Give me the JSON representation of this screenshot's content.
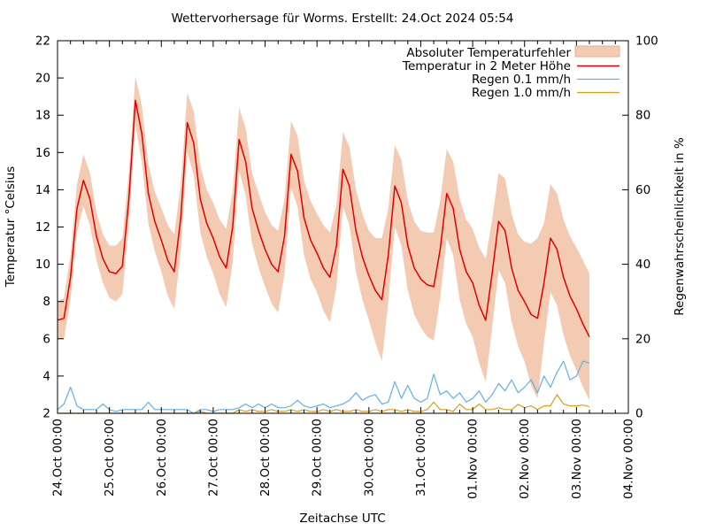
{
  "chart_data": {
    "type": "line",
    "title": "Wettervorhersage für Worms. Erstellt: 24.Oct 2024 05:54",
    "xlabel": "Zeitachse UTC",
    "ylabel_left": "Temperatur °Celsius",
    "ylabel_right": "Regenwahrscheinlichkeit in %",
    "ylim_left": [
      2,
      22
    ],
    "ylim_right": [
      0,
      100
    ],
    "ytick_step_left": 2,
    "ytick_step_right": 20,
    "x_hours_total": 264,
    "x_minor_step_hours": 6,
    "x_tick_labels": [
      "24.Oct 00:00",
      "25.Oct 00:00",
      "26.Oct 00:00",
      "27.Oct 00:00",
      "28.Oct 00:00",
      "29.Oct 00:00",
      "30.Oct 00:00",
      "31.Oct 00:00",
      "01.Nov 00:00",
      "02.Nov 00:00",
      "03.Nov 00:00",
      "04.Nov 00:00"
    ],
    "grid": false,
    "legend_position": "top-right-inside",
    "legend": [
      {
        "label": "Absoluter Temperaturfehler",
        "type": "band",
        "color": "#f3cab2"
      },
      {
        "label": "Temperatur in 2 Meter Höhe",
        "type": "line",
        "color": "#e10000"
      },
      {
        "label": "Regen 0.1 mm/h",
        "type": "line",
        "color": "#5fb2e6"
      },
      {
        "label": "Regen 1.0 mm/h",
        "type": "line",
        "color": "#dba117"
      }
    ],
    "series": {
      "start": "24.Oct 00:00 UTC",
      "hours_step": 3,
      "temperature_c": [
        7.0,
        7.1,
        9.3,
        13.0,
        14.5,
        13.5,
        11.5,
        10.3,
        9.6,
        9.5,
        9.9,
        13.5,
        18.8,
        17.0,
        13.8,
        12.3,
        11.3,
        10.2,
        9.6,
        12.5,
        17.6,
        16.5,
        13.5,
        12.2,
        11.4,
        10.4,
        9.8,
        12.0,
        16.7,
        15.5,
        13.0,
        11.8,
        10.8,
        10.0,
        9.6,
        11.5,
        15.9,
        15.0,
        12.5,
        11.3,
        10.6,
        9.8,
        9.3,
        11.0,
        15.1,
        14.2,
        11.8,
        10.4,
        9.4,
        8.6,
        8.1,
        10.5,
        14.2,
        13.3,
        11.0,
        9.8,
        9.2,
        8.9,
        8.8,
        10.8,
        13.8,
        13.0,
        10.8,
        9.6,
        9.0,
        7.8,
        7.0,
        9.5,
        12.3,
        11.8,
        9.8,
        8.6,
        8.0,
        7.3,
        7.1,
        9.0,
        11.4,
        10.8,
        9.3,
        8.3,
        7.6,
        6.8,
        6.1
      ],
      "temperature_error_c": [
        1.0,
        1.1,
        1.2,
        1.3,
        1.4,
        1.4,
        1.3,
        1.3,
        1.4,
        1.5,
        1.5,
        1.4,
        1.3,
        1.5,
        1.6,
        1.6,
        1.7,
        1.9,
        2.0,
        1.8,
        1.6,
        1.7,
        1.8,
        1.8,
        1.9,
        2.0,
        2.1,
        1.9,
        1.7,
        1.8,
        1.9,
        2.0,
        2.0,
        2.1,
        2.2,
        2.0,
        1.8,
        1.9,
        2.0,
        2.1,
        2.1,
        2.3,
        2.4,
        2.2,
        2.0,
        2.1,
        2.2,
        2.3,
        2.4,
        2.8,
        3.3,
        2.5,
        2.2,
        2.3,
        2.4,
        2.5,
        2.6,
        2.8,
        2.9,
        2.6,
        2.4,
        2.5,
        2.7,
        2.8,
        2.9,
        3.1,
        3.3,
        2.9,
        2.6,
        2.8,
        2.9,
        3.0,
        3.2,
        3.8,
        4.3,
        3.2,
        2.9,
        3.0,
        3.1,
        3.2,
        3.3,
        3.4,
        3.4
      ],
      "rain_01mmh_percent": [
        1,
        2.5,
        7,
        2,
        1,
        1,
        1,
        2.5,
        1,
        0.5,
        1,
        1,
        1,
        1,
        3,
        1,
        1,
        1,
        1,
        1,
        1,
        0,
        1,
        1,
        0.5,
        1,
        1,
        1,
        1.5,
        2.5,
        1.5,
        2.5,
        1.5,
        2.5,
        1.5,
        1.5,
        2,
        3.5,
        2,
        1.5,
        2,
        2.5,
        1.5,
        2,
        2.5,
        3.5,
        5.5,
        3.5,
        4.5,
        5,
        2.5,
        3,
        8.5,
        4,
        7.5,
        4,
        3,
        4,
        10.5,
        5,
        6,
        4,
        5.5,
        3,
        4,
        6,
        3,
        5,
        8,
        6,
        9,
        5.5,
        7,
        9,
        5.5,
        10,
        7,
        11,
        14,
        9,
        10,
        14,
        13.5
      ],
      "rain_10mmh_percent": [
        0,
        0,
        0,
        0,
        0,
        0,
        0,
        0,
        0,
        0,
        0,
        0,
        0,
        0,
        0,
        0,
        0,
        0,
        0,
        0,
        0,
        0,
        0.5,
        0,
        0,
        0,
        0,
        0,
        1,
        0.5,
        1,
        0.5,
        0.5,
        1,
        0.5,
        0.5,
        1,
        0.5,
        1,
        0.5,
        0.5,
        1,
        0.5,
        1,
        0.5,
        0.5,
        1,
        0.5,
        0.5,
        1,
        0.5,
        1,
        1,
        0.5,
        1,
        0.5,
        0.5,
        1,
        3,
        1,
        1,
        0.5,
        2.5,
        1,
        1,
        2.5,
        1,
        1,
        1.5,
        1,
        1,
        2.4,
        1.5,
        2,
        1,
        2,
        2,
        5,
        2.5,
        2,
        2,
        2.2,
        1.8
      ]
    }
  }
}
